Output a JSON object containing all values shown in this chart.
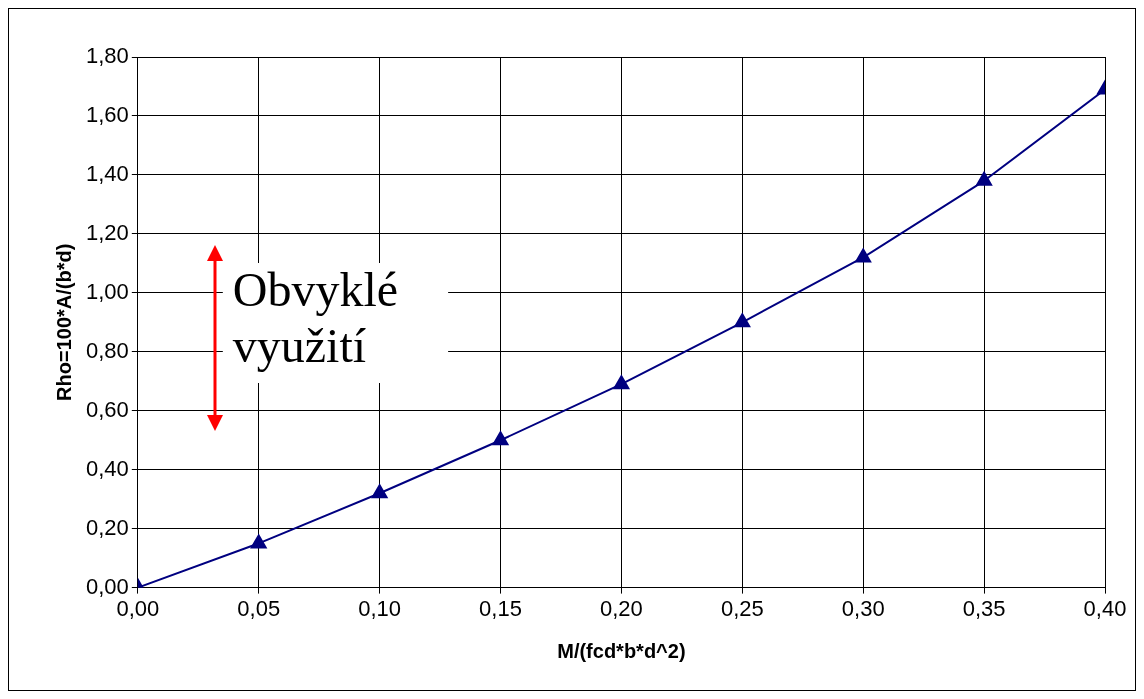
{
  "chart_data": {
    "type": "line",
    "xlabel": "M/(fcd*b*d^2)",
    "ylabel": "Rho=100*A/(b*d)",
    "x": [
      0,
      0.05,
      0.1,
      0.15,
      0.2,
      0.25,
      0.3,
      0.35,
      0.4
    ],
    "series": [
      {
        "color": "#000080",
        "values": [
          0,
          0.15,
          0.32,
          0.5,
          0.69,
          0.9,
          1.12,
          1.38,
          1.69
        ]
      }
    ],
    "xlim": [
      0,
      0.4
    ],
    "xticks": [
      {
        "value": 0,
        "label": "0,00"
      },
      {
        "value": 0.05,
        "label": "0,05"
      },
      {
        "value": 0.1,
        "label": "0,10"
      },
      {
        "value": 0.15,
        "label": "0,15"
      },
      {
        "value": 0.2,
        "label": "0,20"
      },
      {
        "value": 0.25,
        "label": "0,25"
      },
      {
        "value": 0.3,
        "label": "0,30"
      },
      {
        "value": 0.35,
        "label": "0,35"
      },
      {
        "value": 0.4,
        "label": "0,40"
      }
    ],
    "ylim": [
      0,
      1.8
    ],
    "yticks": [
      {
        "value": 0,
        "label": "0,00"
      },
      {
        "value": 0.2,
        "label": "0,20"
      },
      {
        "value": 0.4,
        "label": "0,40"
      },
      {
        "value": 0.6,
        "label": "0,60"
      },
      {
        "value": 0.8,
        "label": "0,80"
      },
      {
        "value": 1,
        "label": "1,00"
      },
      {
        "value": 1.2,
        "label": "1,20"
      },
      {
        "value": 1.4,
        "label": "1,40"
      },
      {
        "value": 1.6,
        "label": "1,60"
      },
      {
        "value": 1.8,
        "label": "1,80"
      }
    ],
    "annotations": [
      "Obvyklé využití"
    ],
    "grid": true,
    "legend": false,
    "marker": "triangle",
    "line_style": "solid"
  }
}
